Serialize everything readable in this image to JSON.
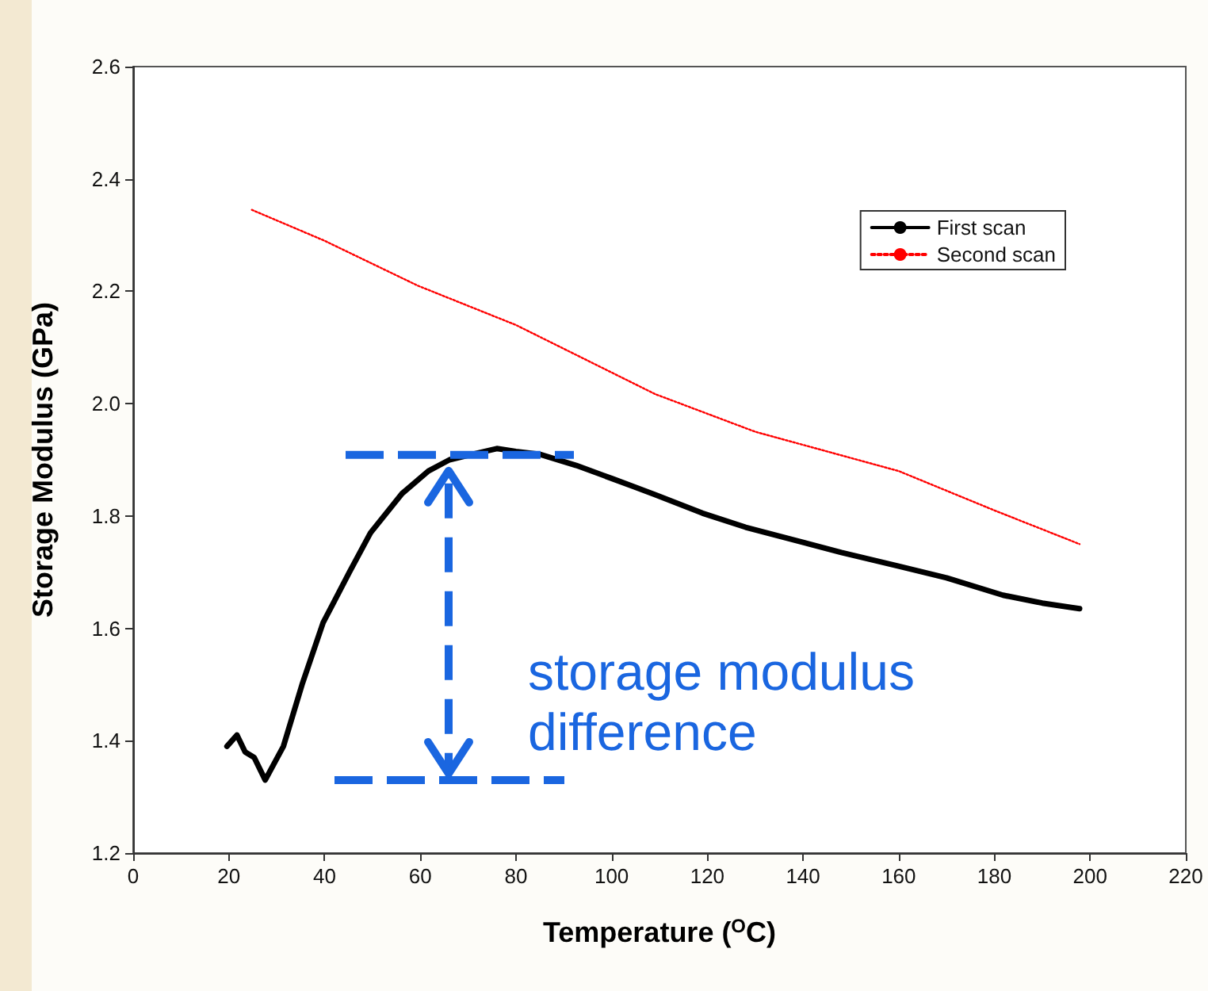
{
  "chart_data": {
    "type": "line",
    "xlabel": "Temperature ($^{O}$C)",
    "ylabel": "Storage Modulus (GPa)",
    "xlim": [
      0,
      220
    ],
    "xticks": [
      0,
      20,
      40,
      60,
      80,
      100,
      120,
      140,
      160,
      180,
      200,
      220
    ],
    "ylim": [
      1.2,
      2.6
    ],
    "yticks": [
      1.2,
      1.4,
      1.6,
      1.8,
      {
        "value": 2,
        "label": "2.0"
      },
      2.2,
      2.4,
      2.6
    ],
    "grid": false,
    "legend": "top right",
    "marker": "none",
    "annotations": [
      "storage modulus\ndifference"
    ],
    "series": [
      {
        "name": "First scan",
        "color": "#000000",
        "line_style": "solid",
        "x": [
          19.6,
          21.7,
          23.4,
          25.3,
          27.6,
          31.4,
          35.3,
          39.7,
          45.2,
          49.6,
          56.2,
          61.7,
          66.1,
          71,
          76,
          80,
          84.9,
          92.6,
          100.3,
          104.7,
          109.1,
          119,
          128,
          137.8,
          148,
          159.8,
          170,
          181.8,
          190,
          197.8
        ],
        "values": [
          1.39,
          1.41,
          1.38,
          1.37,
          1.33,
          1.39,
          1.5,
          1.61,
          1.7,
          1.77,
          1.84,
          1.88,
          1.9,
          1.91,
          1.92,
          1.915,
          1.91,
          1.89,
          1.866,
          1.852,
          1.838,
          1.805,
          1.78,
          1.758,
          1.735,
          1.711,
          1.69,
          1.659,
          1.645,
          1.635
        ]
      },
      {
        "name": "Second scan",
        "color": "#ff0000",
        "line_style": "dotted",
        "x": [
          24.8,
          40,
          59.5,
          80,
          109.1,
          130,
          160,
          180,
          197.8
        ],
        "values": [
          2.345,
          2.29,
          2.21,
          2.14,
          2.017,
          1.95,
          1.88,
          1.81,
          1.75
        ]
      }
    ]
  }
}
